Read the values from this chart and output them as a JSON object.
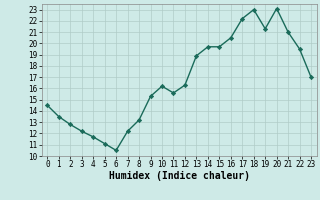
{
  "x": [
    0,
    1,
    2,
    3,
    4,
    5,
    6,
    7,
    8,
    9,
    10,
    11,
    12,
    13,
    14,
    15,
    16,
    17,
    18,
    19,
    20,
    21,
    22,
    23
  ],
  "y": [
    14.5,
    13.5,
    12.8,
    12.2,
    11.7,
    11.1,
    10.5,
    12.2,
    13.2,
    15.3,
    16.2,
    15.6,
    16.3,
    18.9,
    19.7,
    19.7,
    20.5,
    22.2,
    23.0,
    21.3,
    23.1,
    21.0,
    19.5,
    17.0
  ],
  "line_color": "#1a6b5a",
  "marker": "D",
  "marker_size": 2.2,
  "bg_color": "#ceeae7",
  "grid_color": "#b0ccc8",
  "xlabel": "Humidex (Indice chaleur)",
  "xlim": [
    -0.5,
    23.5
  ],
  "ylim": [
    10,
    23.5
  ],
  "yticks": [
    10,
    11,
    12,
    13,
    14,
    15,
    16,
    17,
    18,
    19,
    20,
    21,
    22,
    23
  ],
  "xticks": [
    0,
    1,
    2,
    3,
    4,
    5,
    6,
    7,
    8,
    9,
    10,
    11,
    12,
    13,
    14,
    15,
    16,
    17,
    18,
    19,
    20,
    21,
    22,
    23
  ],
  "tick_fontsize": 5.5,
  "label_fontsize": 7.0,
  "linewidth": 1.0
}
